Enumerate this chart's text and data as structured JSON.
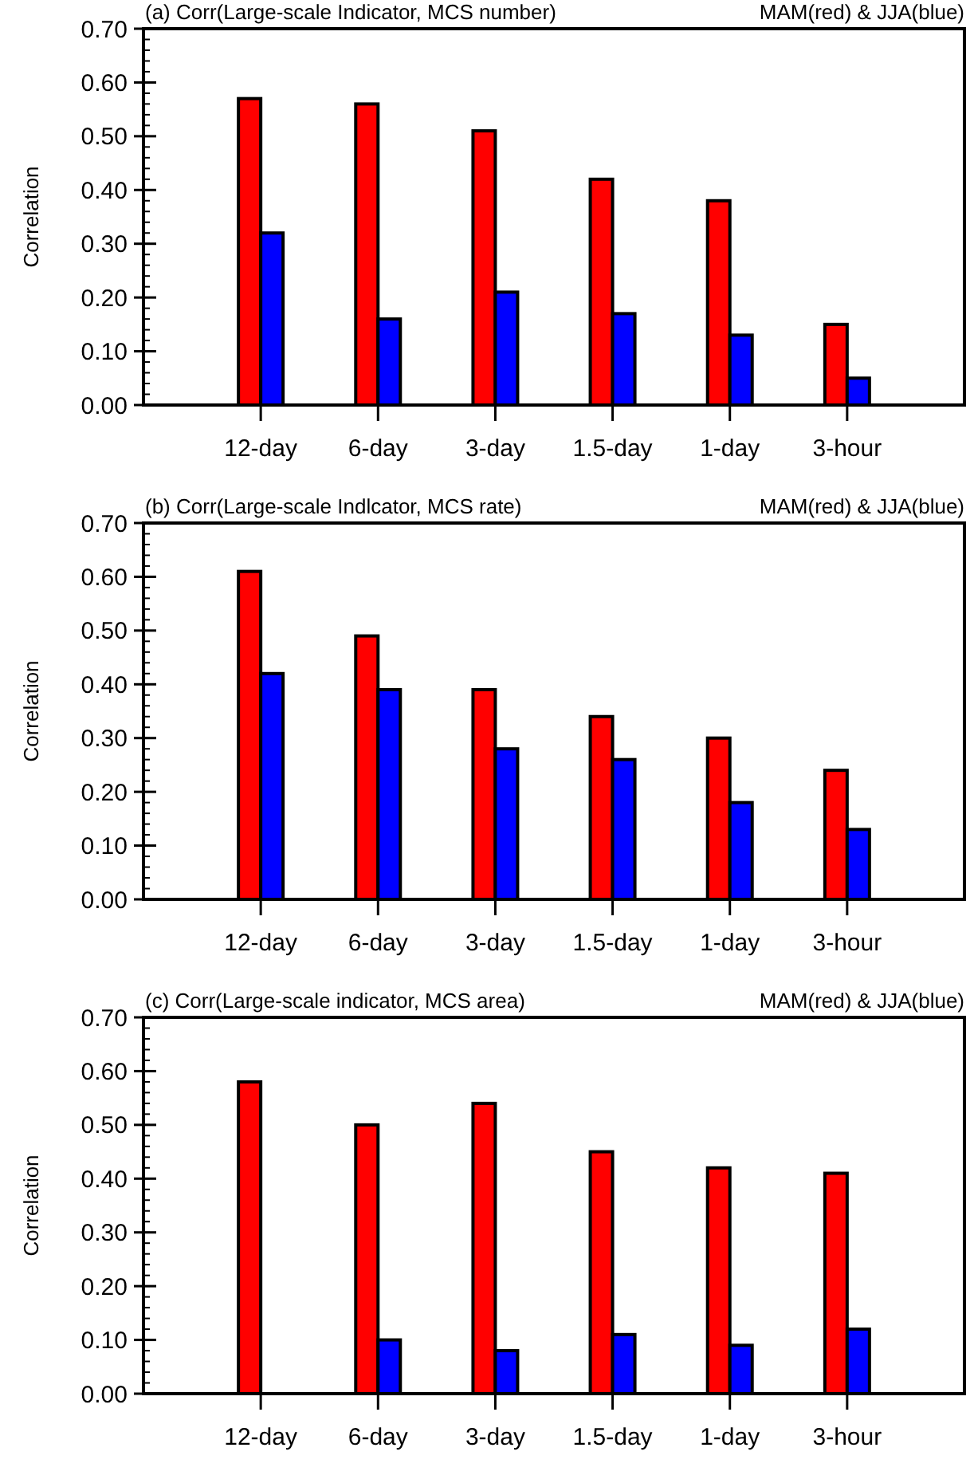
{
  "chart_data": [
    {
      "type": "bar",
      "title": "(a) Corr(Large-scale Indicator, MCS number)",
      "subtitle": "MAM(red) & JJA(blue)",
      "ylabel": "Correlation",
      "categories": [
        "12-day",
        "6-day",
        "3-day",
        "1.5-day",
        "1-day",
        "3-hour"
      ],
      "series": [
        {
          "color": "#ff0000",
          "values": [
            0.57,
            0.56,
            0.51,
            0.42,
            0.38,
            0.15
          ]
        },
        {
          "color": "#0000ff",
          "values": [
            0.32,
            0.16,
            0.21,
            0.17,
            0.13,
            0.05
          ]
        }
      ],
      "ylim": [
        0,
        0.7
      ],
      "yticks": [
        {
          "value": 0,
          "label": "0.00"
        },
        {
          "value": 0.1,
          "label": "0.10"
        },
        {
          "value": 0.2,
          "label": "0.20"
        },
        {
          "value": 0.3,
          "label": "0.30"
        },
        {
          "value": 0.4,
          "label": "0.40"
        },
        {
          "value": 0.5,
          "label": "0.50"
        },
        {
          "value": 0.6,
          "label": "0.60"
        },
        {
          "value": 0.7,
          "label": "0.70"
        }
      ],
      "grid": false
    },
    {
      "type": "bar",
      "title": "(b) Corr(Large-scale Indlcator, MCS rate)",
      "subtitle": "MAM(red) & JJA(blue)",
      "ylabel": "Correlation",
      "categories": [
        "12-day",
        "6-day",
        "3-day",
        "1.5-day",
        "1-day",
        "3-hour"
      ],
      "series": [
        {
          "color": "#ff0000",
          "values": [
            0.61,
            0.49,
            0.39,
            0.34,
            0.3,
            0.24
          ]
        },
        {
          "color": "#0000ff",
          "values": [
            0.42,
            0.39,
            0.28,
            0.26,
            0.18,
            0.13
          ]
        }
      ],
      "ylim": [
        0,
        0.7
      ],
      "yticks": [
        {
          "value": 0,
          "label": "0.00"
        },
        {
          "value": 0.1,
          "label": "0.10"
        },
        {
          "value": 0.2,
          "label": "0.20"
        },
        {
          "value": 0.3,
          "label": "0.30"
        },
        {
          "value": 0.4,
          "label": "0.40"
        },
        {
          "value": 0.5,
          "label": "0.50"
        },
        {
          "value": 0.6,
          "label": "0.60"
        },
        {
          "value": 0.7,
          "label": "0.70"
        }
      ],
      "grid": false
    },
    {
      "type": "bar",
      "title": "(c) Corr(Large-scale indicator, MCS area)",
      "subtitle": "MAM(red) & JJA(blue)",
      "ylabel": "Correlation",
      "categories": [
        "12-day",
        "6-day",
        "3-day",
        "1.5-day",
        "1-day",
        "3-hour"
      ],
      "series": [
        {
          "color": "#ff0000",
          "values": [
            0.58,
            0.5,
            0.54,
            0.45,
            0.42,
            0.41
          ]
        },
        {
          "color": "#0000ff",
          "values": [
            null,
            0.1,
            0.08,
            0.11,
            0.09,
            0.12
          ]
        }
      ],
      "ylim": [
        0,
        0.7
      ],
      "yticks": [
        {
          "value": 0,
          "label": "0.00"
        },
        {
          "value": 0.1,
          "label": "0.10"
        },
        {
          "value": 0.2,
          "label": "0.20"
        },
        {
          "value": 0.3,
          "label": "0.30"
        },
        {
          "value": 0.4,
          "label": "0.40"
        },
        {
          "value": 0.5,
          "label": "0.50"
        },
        {
          "value": 0.6,
          "label": "0.60"
        },
        {
          "value": 0.7,
          "label": "0.70"
        }
      ],
      "grid": false
    }
  ]
}
